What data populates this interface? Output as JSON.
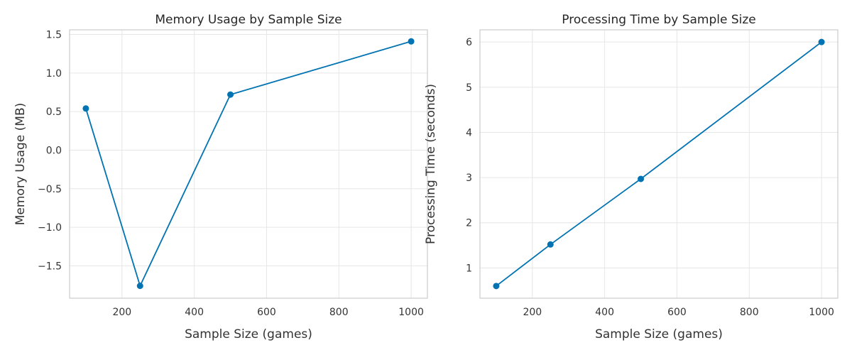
{
  "chart_data": [
    {
      "type": "line",
      "title": "Memory Usage by Sample Size",
      "xlabel": "Sample Size (games)",
      "ylabel": "Memory Usage (MB)",
      "x": [
        100,
        250,
        500,
        1000
      ],
      "series": [
        {
          "values": [
            0.54,
            -1.76,
            0.72,
            1.41
          ],
          "color": "#0173b2"
        }
      ],
      "xlim": [
        55,
        1045
      ],
      "ylim": [
        -1.92,
        1.56
      ],
      "xticks": [
        200,
        400,
        600,
        800,
        1000
      ],
      "yticks": [
        -1.5,
        -1.0,
        -0.5,
        0.0,
        0.5,
        1.0,
        1.5
      ],
      "xtick_labels": [
        "200",
        "400",
        "600",
        "800",
        "1000"
      ],
      "ytick_labels": [
        "−1.5",
        "−1.0",
        "−0.5",
        "0.0",
        "0.5",
        "1.0",
        "1.5"
      ],
      "grid": true,
      "legend": "none"
    },
    {
      "type": "line",
      "title": "Processing Time by Sample Size",
      "xlabel": "Sample Size (games)",
      "ylabel": "Processing Time (seconds)",
      "x": [
        100,
        250,
        500,
        1000
      ],
      "series": [
        {
          "values": [
            0.6,
            1.52,
            2.97,
            6.0
          ],
          "color": "#0173b2"
        }
      ],
      "xlim": [
        55,
        1045
      ],
      "ylim": [
        0.33,
        6.27
      ],
      "xticks": [
        200,
        400,
        600,
        800,
        1000
      ],
      "yticks": [
        1,
        2,
        3,
        4,
        5,
        6
      ],
      "xtick_labels": [
        "200",
        "400",
        "600",
        "800",
        "1000"
      ],
      "ytick_labels": [
        "1",
        "2",
        "3",
        "4",
        "5",
        "6"
      ],
      "grid": true,
      "legend": "none"
    }
  ]
}
